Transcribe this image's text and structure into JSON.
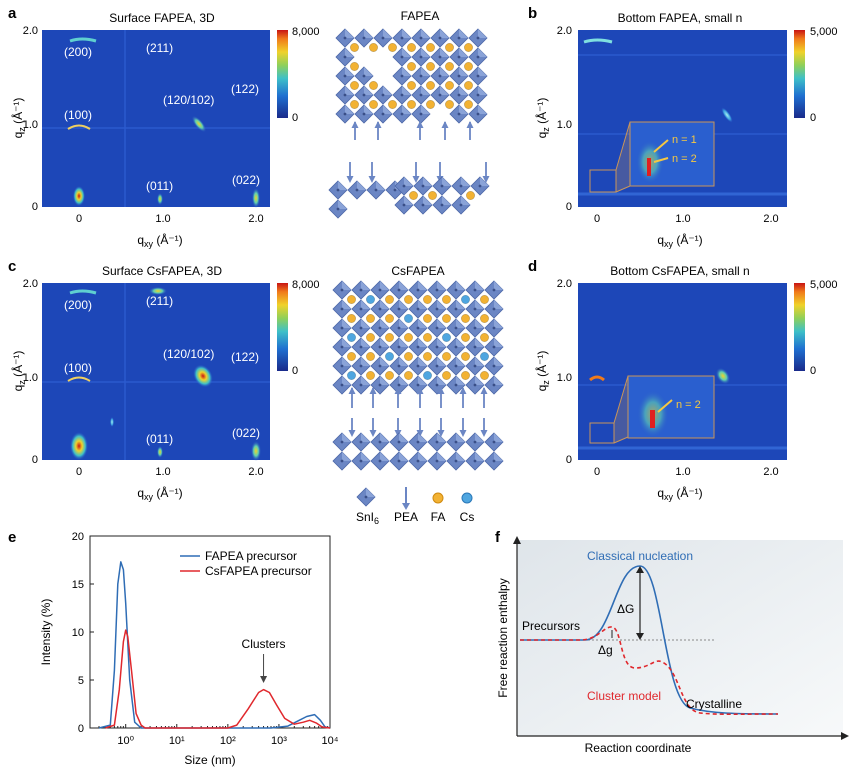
{
  "panels": {
    "a": {
      "letter": "a",
      "title": "Surface FAPEA, 3D",
      "cbar_max": "8,000",
      "cbar_min": "0",
      "yticks": [
        "2.0",
        "1.0",
        "0"
      ],
      "xticks": [
        "0",
        "1.0",
        "2.0"
      ],
      "peaks": [
        "(200)",
        "(211)",
        "(100)",
        "(120/102)",
        "(122)",
        "(011)",
        "(022)"
      ]
    },
    "b": {
      "letter": "b",
      "title": "Bottom FAPEA, small n",
      "cbar_max": "5,000",
      "cbar_min": "0",
      "yticks": [
        "2.0",
        "1.0",
        "0"
      ],
      "xticks": [
        "0",
        "1.0",
        "2.0"
      ],
      "inset_labels": [
        "n = 1",
        "n = 2"
      ]
    },
    "c": {
      "letter": "c",
      "title": "Surface CsFAPEA, 3D",
      "cbar_max": "8,000",
      "cbar_min": "0",
      "yticks": [
        "2.0",
        "1.0",
        "0"
      ],
      "xticks": [
        "0",
        "1.0",
        "2.0"
      ],
      "peaks": [
        "(200)",
        "(211)",
        "(100)",
        "(120/102)",
        "(122)",
        "(011)",
        "(022)"
      ]
    },
    "d": {
      "letter": "d",
      "title": "Bottom CsFAPEA, small n",
      "cbar_max": "5,000",
      "cbar_min": "0",
      "yticks": [
        "2.0",
        "1.0",
        "0"
      ],
      "xticks": [
        "0",
        "1.0",
        "2.0"
      ],
      "inset_labels": [
        "n = 2"
      ]
    },
    "e": {
      "letter": "e"
    },
    "f": {
      "letter": "f",
      "ylabel": "Free reaction enthalpy",
      "xlabel": "Reaction coordinate",
      "labels": {
        "classical": "Classical nucleation",
        "dG": "ΔG",
        "precursors": "Precursors",
        "dg": "Δg",
        "cluster": "Cluster model",
        "crystalline": "Crystalline"
      }
    }
  },
  "axis_labels": {
    "qz": "q",
    "qz_sub": "z",
    "qz_unit": " (Å⁻¹)",
    "qxy": "q",
    "qxy_sub": "xy",
    "qxy_unit": " (Å⁻¹)"
  },
  "structures": {
    "fapea_title": "FAPEA",
    "csfapea_title": "CsFAPEA",
    "legend": {
      "snl": "SnI",
      "snl_sub": "6",
      "pea": "PEA",
      "fa": "FA",
      "cs": "Cs"
    }
  },
  "colors": {
    "fa": "#f2b233",
    "cs": "#4fa6e0",
    "octa": "#6b86c4",
    "fapea": "#2f6db5",
    "csfapea": "#e0282d"
  },
  "chart_data": {
    "type": "line",
    "xscale": "log",
    "xlabel": "Size (nm)",
    "ylabel": "Intensity (%)",
    "xlim": [
      0.2,
      10000
    ],
    "ylim": [
      0,
      20
    ],
    "xtick_labels": [
      "10⁰",
      "10¹",
      "10²",
      "10³",
      "10⁴"
    ],
    "ytick_labels": [
      "0",
      "5",
      "10",
      "15",
      "20"
    ],
    "annotation": "Clusters",
    "series": [
      {
        "name": "FAPEA precursor",
        "color": "#2f6db5",
        "x": [
          0.3,
          0.5,
          0.6,
          0.7,
          0.8,
          0.9,
          1.0,
          1.2,
          1.5,
          2.0,
          10,
          100,
          300,
          700,
          1500,
          2500,
          3500,
          5000,
          6500,
          8000,
          10000
        ],
        "y": [
          0,
          0.3,
          6,
          15,
          17.3,
          16.5,
          13,
          5,
          0.6,
          0,
          0,
          0,
          0,
          0,
          0.2,
          0.8,
          1.2,
          1.4,
          0.8,
          0.1,
          0
        ]
      },
      {
        "name": "CsFAPEA precursor",
        "color": "#e0282d",
        "x": [
          0.4,
          0.6,
          0.75,
          0.9,
          1.0,
          1.1,
          1.3,
          1.6,
          2.0,
          2.4,
          10,
          100,
          150,
          250,
          400,
          500,
          650,
          900,
          1300,
          2000,
          3000,
          4000,
          5500,
          7000,
          10000
        ],
        "y": [
          0,
          0.3,
          4,
          9,
          10.2,
          9.5,
          6,
          1.5,
          0.3,
          0,
          0,
          0,
          0.3,
          2,
          3.7,
          4.0,
          3.7,
          2.4,
          1.0,
          0.4,
          0.6,
          0.8,
          0.5,
          0.1,
          0
        ]
      }
    ]
  }
}
